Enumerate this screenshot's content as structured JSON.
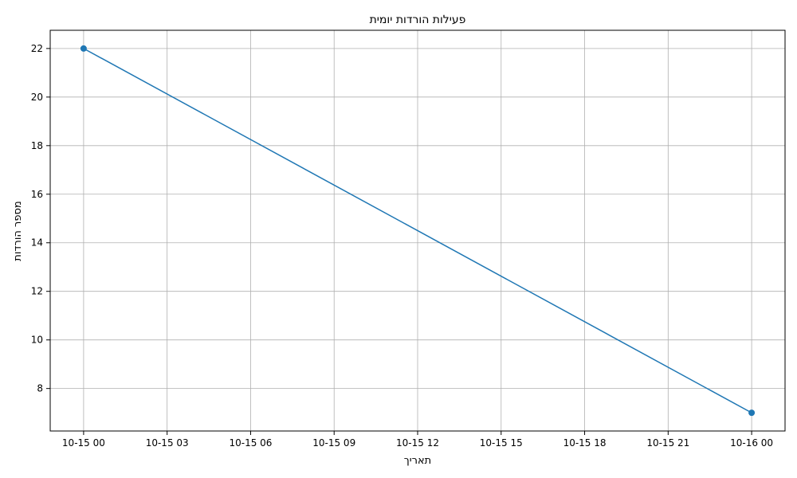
{
  "chart_data": {
    "type": "line",
    "title": "פעילות הורדות יומית",
    "xlabel": "תאריך",
    "ylabel": "מספר הורדות",
    "x_hours": [
      0,
      24
    ],
    "y": [
      22,
      7
    ],
    "x_tick_labels": [
      "10-15 00",
      "10-15 03",
      "10-15 06",
      "10-15 09",
      "10-15 12",
      "10-15 15",
      "10-15 18",
      "10-15 21",
      "10-16 00"
    ],
    "y_ticks": [
      8,
      10,
      12,
      14,
      16,
      18,
      20,
      22
    ],
    "ylim": [
      6.25,
      22.75
    ],
    "grid": true,
    "line_color": "#1f77b4",
    "marker": "circle"
  }
}
